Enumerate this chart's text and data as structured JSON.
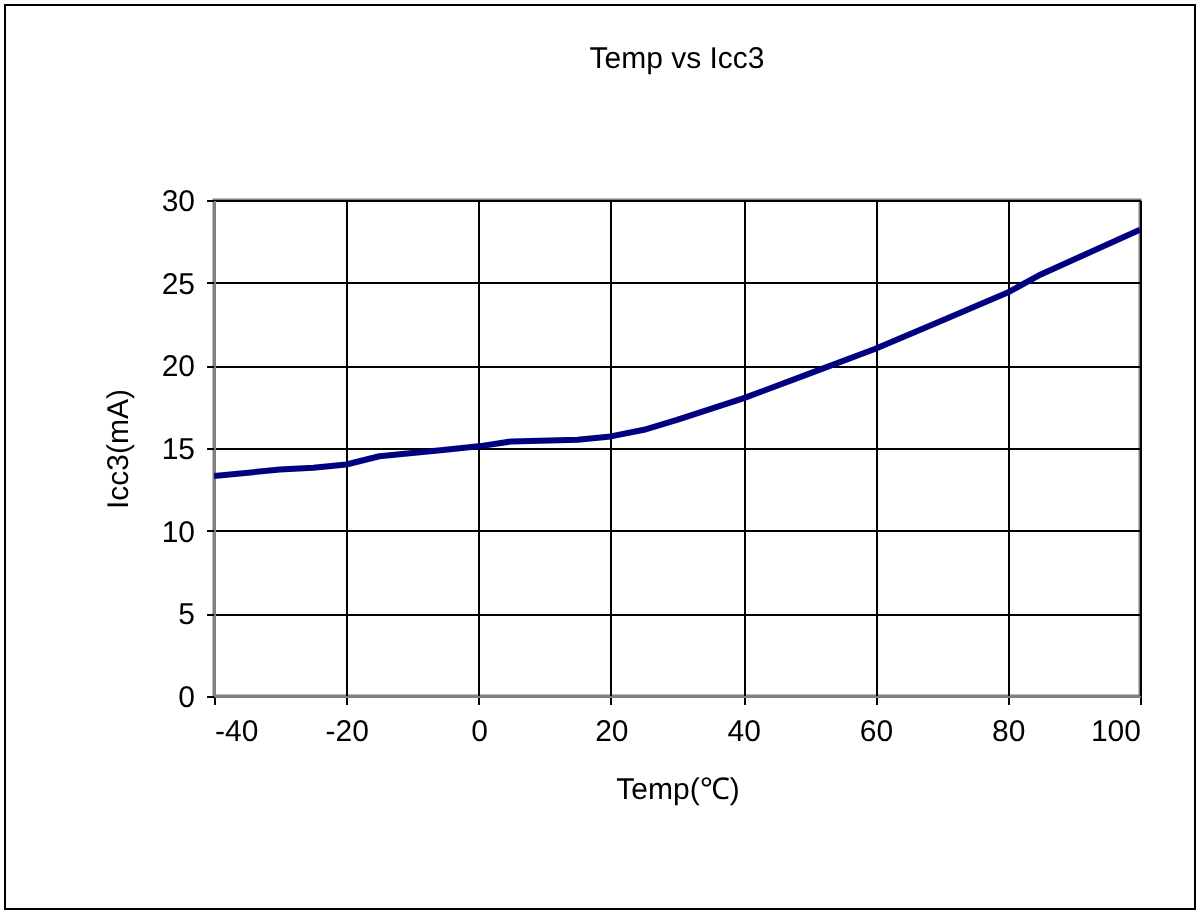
{
  "chart_data": {
    "type": "line",
    "title": "Temp vs Icc3",
    "xlabel": "Temp(℃)",
    "ylabel": "Icc3(mA)",
    "x": [
      -40,
      -30,
      -25,
      -20,
      -15,
      -5,
      0,
      5,
      15,
      20,
      25,
      30,
      40,
      50,
      60,
      70,
      80,
      85,
      100
    ],
    "series": [
      {
        "color": "#000080",
        "values": [
          13.3,
          13.7,
          13.8,
          14.0,
          14.5,
          14.9,
          15.1,
          15.4,
          15.5,
          15.7,
          16.1,
          16.7,
          18.0,
          19.5,
          21.0,
          22.7,
          24.4,
          25.5,
          28.2
        ]
      }
    ],
    "xlim": [
      -40,
      100
    ],
    "xticks": [
      -40,
      -20,
      0,
      20,
      40,
      60,
      80,
      100
    ],
    "ylim": [
      0,
      30
    ],
    "yticks": [
      0,
      5,
      10,
      15,
      20,
      25,
      30
    ],
    "grid": true,
    "legend": false,
    "marker": "none",
    "line_style": "solid"
  }
}
